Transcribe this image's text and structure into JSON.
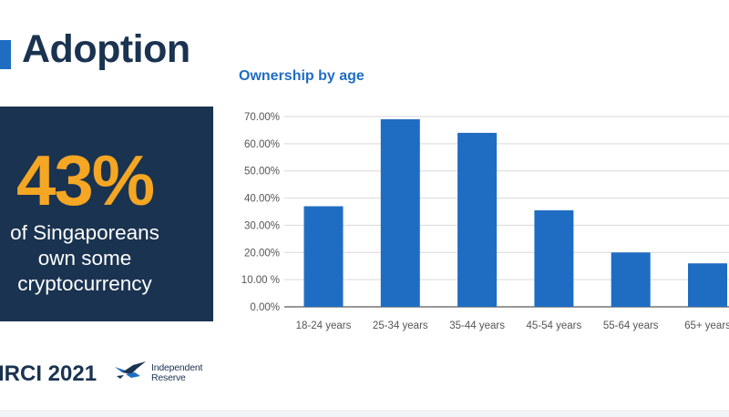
{
  "slide": {
    "title": "Adoption",
    "stat": {
      "value": "43%",
      "lines": [
        "of Singaporeans",
        "own some",
        "cryptocurrency"
      ]
    },
    "footer": "IRCI 2021",
    "logo": {
      "line1": "Independent",
      "line2": "Reserve",
      "icon": "bird-icon"
    }
  },
  "colors": {
    "accent": "#1f6dc3",
    "navy": "#1a3350",
    "highlight": "#f5a623",
    "bar": "#1f6dc3"
  },
  "chart_data": {
    "type": "bar",
    "title": "Ownership by age",
    "categories": [
      "18-24 years",
      "25-34 years",
      "35-44 years",
      "45-54 years",
      "55-64 years",
      "65+ years"
    ],
    "values": [
      37,
      69,
      64,
      35.5,
      20,
      16
    ],
    "yticks": [
      "0.00%",
      "10.00 %",
      "20.00%",
      "30.00%",
      "40.00%",
      "50.00%",
      "60.00%",
      "70.00%"
    ],
    "ylim": [
      0,
      70
    ],
    "grid": true
  }
}
